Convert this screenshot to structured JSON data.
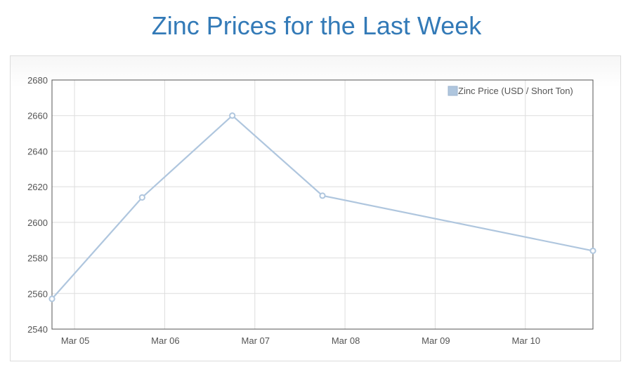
{
  "page": {
    "title": "Zinc Prices for the Last Week"
  },
  "chart_data": {
    "type": "line",
    "title": "Zinc Prices for the Last Week",
    "xlabel": "",
    "ylabel": "",
    "x_tick_labels": [
      "Mar 05",
      "Mar 06",
      "Mar 07",
      "Mar 08",
      "Mar 09",
      "Mar 10"
    ],
    "x_tick_dates": [
      "2020-03-05",
      "2020-03-06",
      "2020-03-07",
      "2020-03-08",
      "2020-03-09",
      "2020-03-10"
    ],
    "xlim": [
      "2020-03-04 18:00",
      "2020-03-10 18:00"
    ],
    "ylim": [
      2540,
      2680
    ],
    "yticks": [
      2540,
      2560,
      2580,
      2600,
      2620,
      2640,
      2660,
      2680
    ],
    "grid": true,
    "legend_position": "top-right",
    "series": [
      {
        "name": "Zinc Price (USD / Short Ton)",
        "color": "#afc6de",
        "points": [
          {
            "x": "2020-03-04 18:00",
            "y": 2557
          },
          {
            "x": "2020-03-05 18:00",
            "y": 2614
          },
          {
            "x": "2020-03-06 18:00",
            "y": 2660
          },
          {
            "x": "2020-03-07 18:00",
            "y": 2615
          },
          {
            "x": "2020-03-10 18:00",
            "y": 2584
          }
        ]
      }
    ]
  }
}
